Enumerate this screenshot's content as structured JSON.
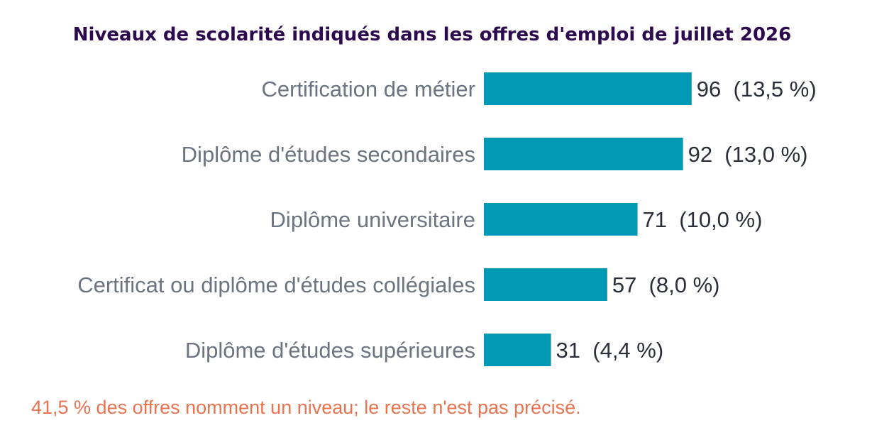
{
  "colors": {
    "bar": "#0099b4",
    "title": "#2d0a4e",
    "category_text": "#6b7480",
    "value_text": "#2a2f3a",
    "note": "#e8734f"
  },
  "chart_data": {
    "type": "bar",
    "orientation": "horizontal",
    "title": "Niveaux de scolarité indiqués dans les offres d'emploi de juillet 2026",
    "categories": [
      "Certification de métier",
      "Diplôme d'études secondaires",
      "Diplôme universitaire",
      "Certificat ou diplôme d'études collégiales",
      "Diplôme d'études supérieures"
    ],
    "values": [
      96,
      92,
      71,
      57,
      31
    ],
    "value_labels": [
      "96  (13,5 %)",
      "92  (13,0 %)",
      "71  (10,0 %)",
      "57  (8,0 %)",
      "31  (4,4 %)"
    ],
    "xlim": [
      0,
      100
    ],
    "grid": false,
    "legend": "none"
  },
  "footnote": "41,5 % des offres nomment un niveau; le reste n'est pas précisé."
}
